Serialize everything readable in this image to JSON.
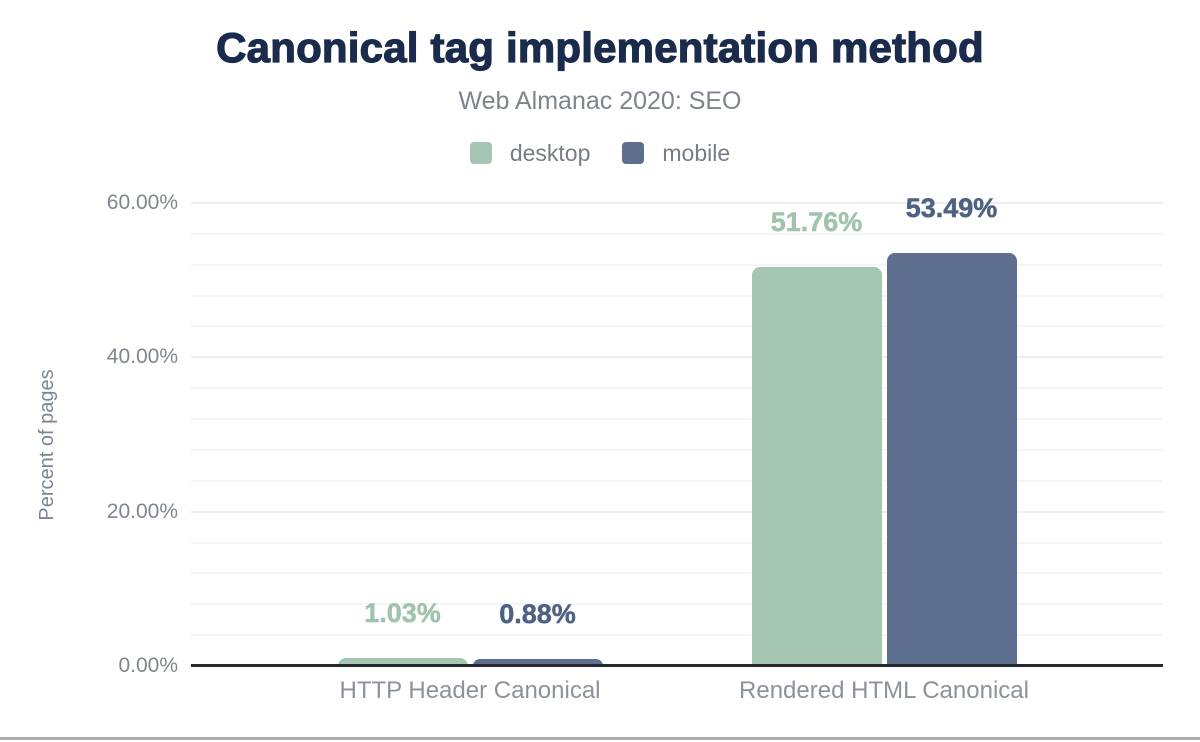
{
  "header": {
    "title": "Canonical tag implementation method",
    "subtitle": "Web Almanac 2020: SEO"
  },
  "legend": [
    {
      "label": "desktop",
      "color": "#a4c6b2"
    },
    {
      "label": "mobile",
      "color": "#5d6e8e"
    }
  ],
  "y_axis": {
    "label": "Percent of pages",
    "ticks": [
      "0.00%",
      "20.00%",
      "40.00%",
      "60.00%"
    ]
  },
  "chart_data": {
    "type": "bar",
    "title": "Canonical tag implementation method",
    "subtitle": "Web Almanac 2020: SEO",
    "categories": [
      "HTTP Header Canonical",
      "Rendered HTML Canonical"
    ],
    "series": [
      {
        "name": "desktop",
        "color": "#a4c6b2",
        "label_color": "#a0c3ae",
        "values": [
          1.03,
          51.76
        ],
        "labels": [
          "1.03%",
          "51.76%"
        ]
      },
      {
        "name": "mobile",
        "color": "#5d6e8e",
        "label_color": "#4d6283",
        "values": [
          0.88,
          53.49
        ],
        "labels": [
          "0.88%",
          "53.49%"
        ]
      }
    ],
    "xlabel": "",
    "ylabel": "Percent of pages",
    "ylim": [
      0,
      60
    ],
    "y_major_step": 20,
    "y_minor_step": 4,
    "grid": true,
    "legend_position": "top"
  }
}
